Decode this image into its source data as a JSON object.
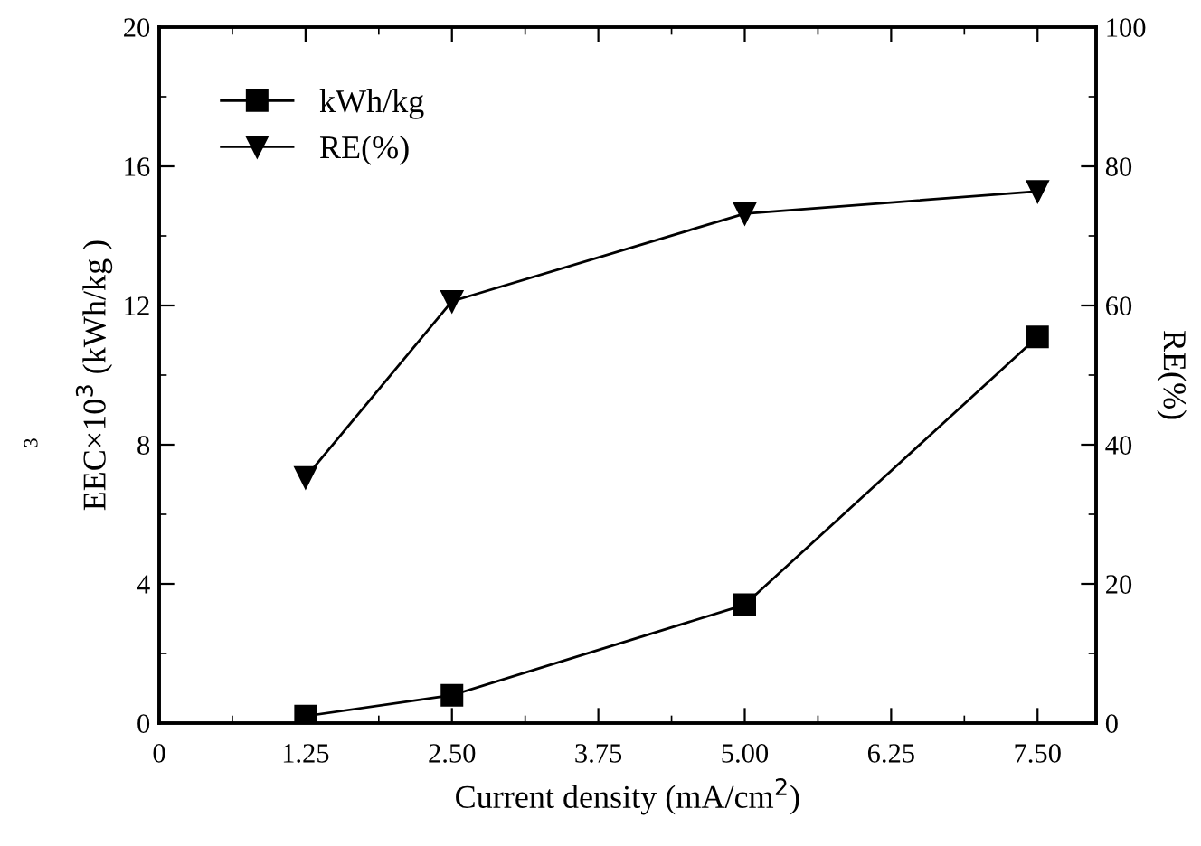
{
  "chart_data": {
    "type": "line",
    "xlabel": "Current density (mA/cm$^{2}$)",
    "ylabel": "EEC×10$^{3}$ (kWh/kg )",
    "y2label": "RE(%)",
    "x": [
      1.25,
      2.5,
      5.0,
      7.5
    ],
    "series": [
      {
        "name": "kWh/kg",
        "color": "#000000",
        "marker": "square",
        "values": [
          0.2,
          0.8,
          3.4,
          11.1
        ]
      },
      {
        "name": "RE(%)",
        "color": "#000000",
        "marker": "triangle",
        "axis": "y2",
        "values": [
          35.3,
          60.6,
          73.2,
          76.4
        ]
      }
    ],
    "xlim": [
      0,
      8
    ],
    "xticks": [
      0,
      {
        "value": 1.25,
        "label": "1.25"
      },
      {
        "value": 2.5,
        "label": "2.50"
      },
      {
        "value": 3.75,
        "label": "3.75"
      },
      {
        "value": 5.0,
        "label": "5.00"
      },
      {
        "value": 6.25,
        "label": "6.25"
      },
      {
        "value": 7.5,
        "label": "7.50"
      }
    ],
    "ylim": [
      0,
      20
    ],
    "yticks": [
      0,
      4,
      8,
      12,
      16,
      20
    ],
    "y2lim": [
      0,
      100
    ],
    "y2ticks": [
      0,
      20,
      40,
      60,
      80,
      100
    ],
    "annotations": [
      "3"
    ],
    "grid": false,
    "legend": "top left",
    "line_style": "solid"
  }
}
